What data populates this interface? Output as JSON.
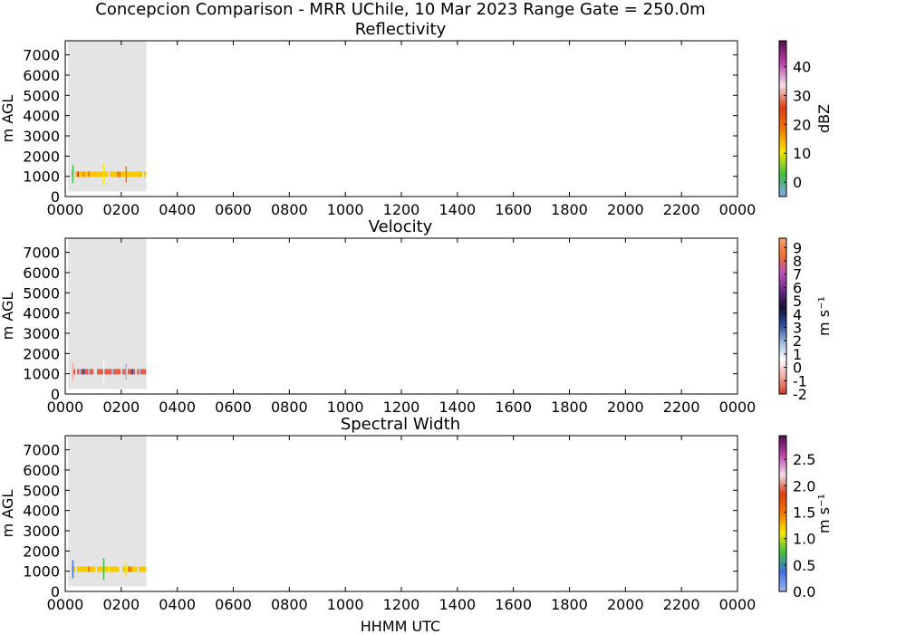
{
  "figure": {
    "title": "Concepcion Comparison - MRR UChile, 10 Mar 2023 Range Gate = 250.0m",
    "xlabel": "HHMM UTC"
  },
  "chart_data": [
    {
      "type": "heatmap",
      "title": "Reflectivity",
      "ylabel": "m AGL",
      "colorbar_label": "dBZ",
      "x_tick_labels": [
        "0000",
        "0200",
        "0400",
        "0600",
        "0800",
        "1000",
        "1200",
        "1400",
        "1600",
        "1800",
        "2000",
        "2200",
        "0000"
      ],
      "y_ticks": [
        0,
        1000,
        2000,
        3000,
        4000,
        5000,
        6000,
        7000
      ],
      "ylim": [
        0,
        7700
      ],
      "xlim_hours": [
        0,
        24
      ],
      "data_window_hours": [
        0.1,
        2.9
      ],
      "data_window_height": [
        250,
        7700
      ],
      "layer_height_m": 1100,
      "colorbar_range": [
        -5,
        49
      ],
      "colorbar_ticks": [
        "0",
        "10",
        "20",
        "30",
        "40"
      ],
      "colorbar_tick_values": [
        0,
        10,
        20,
        30,
        40
      ],
      "colorbar_colors": [
        "#7fa6f0",
        "#40c040",
        "#f7e800",
        "#f37a00",
        "#e03c10",
        "#f0e0e8",
        "#c040b0",
        "#50104a"
      ],
      "dominant_color": "#f5c800"
    },
    {
      "type": "heatmap",
      "title": "Velocity",
      "ylabel": "m AGL",
      "colorbar_label": "m s⁻¹",
      "x_tick_labels": [
        "0000",
        "0200",
        "0400",
        "0600",
        "0800",
        "1000",
        "1200",
        "1400",
        "1600",
        "1800",
        "2000",
        "2200",
        "0000"
      ],
      "y_ticks": [
        0,
        1000,
        2000,
        3000,
        4000,
        5000,
        6000,
        7000
      ],
      "ylim": [
        0,
        7700
      ],
      "xlim_hours": [
        0,
        24
      ],
      "data_window_hours": [
        0.1,
        2.9
      ],
      "data_window_height": [
        250,
        7700
      ],
      "layer_height_m": 1100,
      "colorbar_range": [
        -2,
        9.7
      ],
      "colorbar_ticks": [
        "-2",
        "-1",
        "0",
        "1",
        "2",
        "3",
        "4",
        "5",
        "6",
        "7",
        "8",
        "9"
      ],
      "colorbar_tick_values": [
        -2,
        -1,
        0,
        1,
        2,
        3,
        4,
        5,
        6,
        7,
        8,
        9
      ],
      "colorbar_colors": [
        "#d83a2a",
        "#f4a9a0",
        "#ffffff",
        "#9fb8e0",
        "#2a4a9a",
        "#151535",
        "#6a2a8a",
        "#c050c0",
        "#f07030",
        "#f5a070"
      ],
      "dominant_color": "#e05a48"
    },
    {
      "type": "heatmap",
      "title": "Spectral Width",
      "ylabel": "m AGL",
      "colorbar_label": "m s⁻¹",
      "x_tick_labels": [
        "0000",
        "0200",
        "0400",
        "0600",
        "0800",
        "1000",
        "1200",
        "1400",
        "1600",
        "1800",
        "2000",
        "2200",
        "0000"
      ],
      "y_ticks": [
        0,
        1000,
        2000,
        3000,
        4000,
        5000,
        6000,
        7000
      ],
      "ylim": [
        0,
        7700
      ],
      "xlim_hours": [
        0,
        24
      ],
      "data_window_hours": [
        0.1,
        2.9
      ],
      "data_window_height": [
        250,
        7700
      ],
      "layer_height_m": 1100,
      "colorbar_range": [
        0,
        2.95
      ],
      "colorbar_ticks": [
        "0.0",
        "0.5",
        "1.0",
        "1.5",
        "2.0",
        "2.5"
      ],
      "colorbar_tick_values": [
        0,
        0.5,
        1.0,
        1.5,
        2.0,
        2.5
      ],
      "colorbar_colors": [
        "#a0b8f0",
        "#4070e0",
        "#40c040",
        "#f7e800",
        "#f37a00",
        "#e03c10",
        "#f0e0e8",
        "#c040b0",
        "#50104a"
      ],
      "dominant_color": "#f5c800"
    }
  ]
}
